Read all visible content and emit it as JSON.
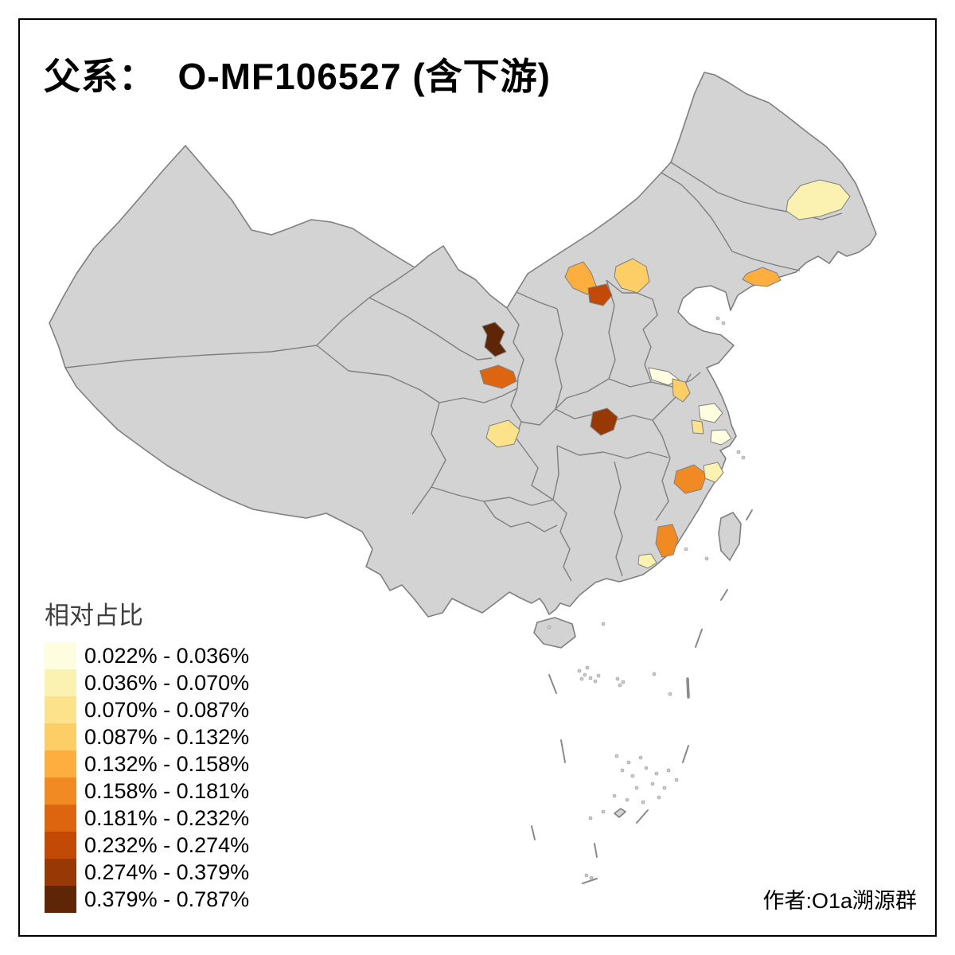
{
  "title": "父系：  O-MF106527 (含下游)",
  "credit": "作者:O1a溯源群",
  "legend": {
    "title": "相对占比",
    "classes": [
      {
        "label": "0.022% - 0.036%",
        "color": "#FFFDE0"
      },
      {
        "label": "0.036% - 0.070%",
        "color": "#FBF2B2"
      },
      {
        "label": "0.070% - 0.087%",
        "color": "#FDE28C"
      },
      {
        "label": "0.087% - 0.132%",
        "color": "#FDCD66"
      },
      {
        "label": "0.132% - 0.158%",
        "color": "#FDAE3F"
      },
      {
        "label": "0.158% - 0.181%",
        "color": "#F28A23"
      },
      {
        "label": "0.181% - 0.232%",
        "color": "#DE6510"
      },
      {
        "label": "0.232% - 0.274%",
        "color": "#C34906"
      },
      {
        "label": "0.274% - 0.379%",
        "color": "#983804"
      },
      {
        "label": "0.379% - 0.787%",
        "color": "#5E2507"
      }
    ]
  },
  "map": {
    "base_fill": "#d3d3d3",
    "border_color": "#7f7f7f",
    "frame_color": "#000000",
    "regions": [
      {
        "id": "r1",
        "color": "#FBF2B2",
        "range": "0.036% - 0.070%"
      },
      {
        "id": "r2",
        "color": "#FDAE3F",
        "range": "0.132% - 0.158%"
      },
      {
        "id": "r3",
        "color": "#C34906",
        "range": "0.232% - 0.274%"
      },
      {
        "id": "r4",
        "color": "#FDCD66",
        "range": "0.087% - 0.132%"
      },
      {
        "id": "r5",
        "color": "#FDAE3F",
        "range": "0.132% - 0.158%"
      },
      {
        "id": "r6",
        "color": "#5E2507",
        "range": "0.379% - 0.787%"
      },
      {
        "id": "r7",
        "color": "#DE6510",
        "range": "0.181% - 0.232%"
      },
      {
        "id": "r8",
        "color": "#983804",
        "range": "0.274% - 0.379%"
      },
      {
        "id": "r9",
        "color": "#FFFDE0",
        "range": "0.022% - 0.036%"
      },
      {
        "id": "r10",
        "color": "#FDCD66",
        "range": "0.087% - 0.132%"
      },
      {
        "id": "r11",
        "color": "#FFFDE0",
        "range": "0.022% - 0.036%"
      },
      {
        "id": "r12",
        "color": "#FDE28C",
        "range": "0.070% - 0.087%"
      },
      {
        "id": "r13",
        "color": "#FFFDE0",
        "range": "0.022% - 0.036%"
      },
      {
        "id": "r14",
        "color": "#FDE28C",
        "range": "0.070% - 0.087%"
      },
      {
        "id": "r15",
        "color": "#F28A23",
        "range": "0.158% - 0.181%"
      },
      {
        "id": "r16",
        "color": "#FBF2B2",
        "range": "0.036% - 0.070%"
      },
      {
        "id": "r17",
        "color": "#F28A23",
        "range": "0.158% - 0.181%"
      },
      {
        "id": "r18",
        "color": "#FBF2B2",
        "range": "0.036% - 0.070%"
      }
    ]
  }
}
